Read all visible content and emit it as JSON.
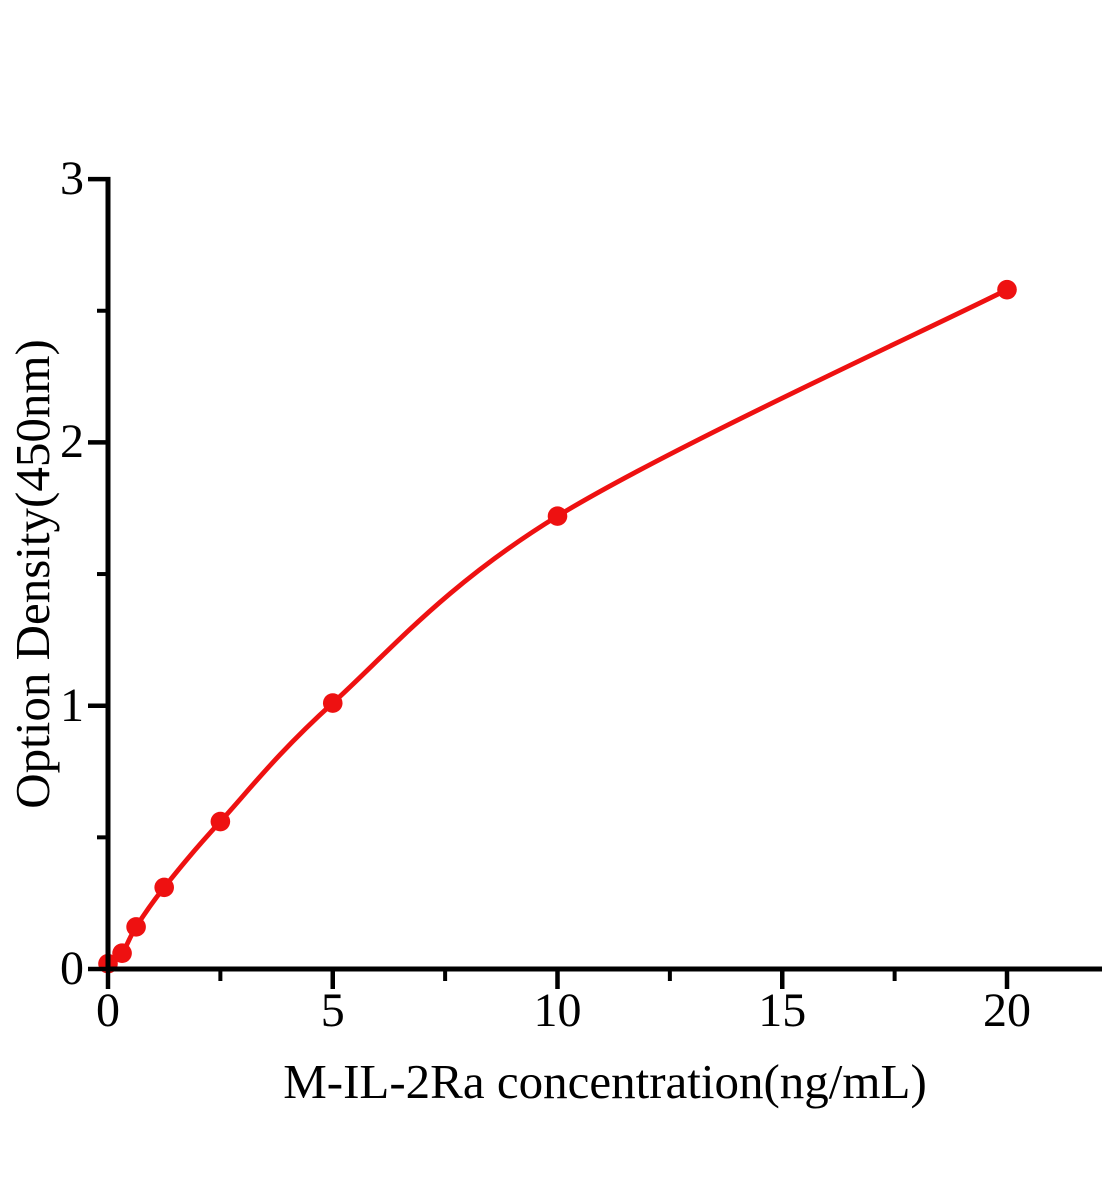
{
  "figure": {
    "background_color": "#ffffff",
    "axis_color": "#000000",
    "accent_color": "#ee1111"
  },
  "chart_data": {
    "type": "line",
    "xlabel": "M-IL-2Ra concentration(ng/mL)",
    "ylabel": "Option Density(450nm)",
    "x": [
      0,
      0.313,
      0.625,
      1.25,
      2.5,
      5,
      10,
      20
    ],
    "values": [
      0.02,
      0.06,
      0.16,
      0.31,
      0.56,
      1.01,
      1.72,
      2.58
    ],
    "xlim": [
      0,
      22.1
    ],
    "ylim": [
      0,
      3
    ],
    "x_major_ticks": [
      0,
      5,
      10,
      15,
      20
    ],
    "x_minor_ticks": [
      2.5,
      7.5,
      12.5,
      17.5
    ],
    "y_major_ticks": [
      0,
      1,
      2,
      3
    ],
    "y_minor_ticks": [
      0.5,
      1.5,
      2.5
    ],
    "grid": false,
    "legend": "none",
    "marker": "circle",
    "line_color": "#ee1111",
    "marker_color": "#ee1111"
  }
}
